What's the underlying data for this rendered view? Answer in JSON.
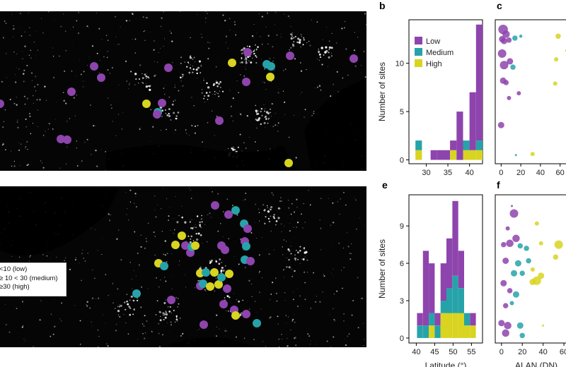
{
  "colors": {
    "low": "#8e44ad",
    "medium": "#26a3a9",
    "high": "#d8d420",
    "map_bg": "#050505",
    "lights": "#e8e8e8"
  },
  "panel_labels": {
    "b": "b",
    "c": "c",
    "e": "e",
    "f": "f"
  },
  "map_legend": {
    "low": "<10 (low)",
    "medium": "≥ 10 < 30 (medium)",
    "high": "≥30 (high)"
  },
  "map_sites": {
    "north_america": [
      {
        "lat_lon_note": "site",
        "level": "low"
      }
    ]
  },
  "chart_data": [
    {
      "id": "b",
      "type": "bar",
      "stacked": true,
      "xlabel": "",
      "ylabel": "Number of sites",
      "xlim": [
        26,
        43
      ],
      "ylim": [
        -0.4,
        14.5
      ],
      "xticks": [
        30,
        35,
        40
      ],
      "yticks": [
        0,
        5,
        10
      ],
      "bin_width": 1.5,
      "bins": [
        27.5,
        31,
        32.5,
        34,
        35.5,
        37,
        38.5,
        40,
        41.5
      ],
      "series": [
        {
          "name": "High",
          "values": [
            1,
            0,
            0,
            0,
            1,
            0,
            1,
            1,
            1
          ]
        },
        {
          "name": "Medium",
          "values": [
            1,
            0,
            0,
            0,
            0,
            0,
            1,
            0,
            1
          ]
        },
        {
          "name": "Low",
          "values": [
            0,
            1,
            1,
            1,
            1,
            5,
            0,
            6,
            12
          ]
        }
      ],
      "legend": {
        "position": "top-left",
        "entries": [
          "Low",
          "Medium",
          "High"
        ]
      }
    },
    {
      "id": "e",
      "type": "bar",
      "stacked": true,
      "xlabel": "Latitude (°)",
      "ylabel": "Number of sites",
      "xlim": [
        38,
        58
      ],
      "ylim": [
        -0.4,
        11.5
      ],
      "xticks": [
        40,
        45,
        50,
        55
      ],
      "yticks": [
        0,
        3,
        6,
        9
      ],
      "bin_width": 1.6,
      "bins": [
        40.2,
        41.8,
        43.4,
        45.0,
        46.6,
        48.2,
        49.8,
        51.4,
        53.0,
        54.6
      ],
      "series": [
        {
          "name": "High",
          "values": [
            0,
            0,
            1,
            0,
            2,
            2,
            2,
            2,
            1,
            1
          ]
        },
        {
          "name": "Medium",
          "values": [
            1,
            1,
            1,
            1,
            1,
            2,
            3,
            2,
            1,
            0
          ]
        },
        {
          "name": "Low",
          "values": [
            1,
            6,
            4,
            1,
            3,
            4,
            6,
            3,
            0,
            1
          ]
        }
      ]
    },
    {
      "id": "c",
      "type": "scatter",
      "xlabel": "",
      "xlim": [
        -6,
        66
      ],
      "xticks": [
        0,
        20,
        40,
        60
      ],
      "note": "y axis shares panel b latitude scale",
      "points": [
        {
          "x": 2,
          "y": 13.5,
          "size": 9,
          "level": "low"
        },
        {
          "x": 5,
          "y": 13.0,
          "size": 7,
          "level": "low"
        },
        {
          "x": 1,
          "y": 12.5,
          "size": 6,
          "level": "low"
        },
        {
          "x": 3,
          "y": 12.3,
          "size": 6,
          "level": "low"
        },
        {
          "x": 8,
          "y": 12.4,
          "size": 5,
          "level": "low"
        },
        {
          "x": 14,
          "y": 12.6,
          "size": 5,
          "level": "medium"
        },
        {
          "x": 20,
          "y": 12.8,
          "size": 3,
          "level": "medium"
        },
        {
          "x": 58,
          "y": 12.8,
          "size": 5,
          "level": "high"
        },
        {
          "x": 1,
          "y": 11.0,
          "size": 8,
          "level": "low"
        },
        {
          "x": 3,
          "y": 9.8,
          "size": 8,
          "level": "low"
        },
        {
          "x": 9,
          "y": 10.2,
          "size": 6,
          "level": "low"
        },
        {
          "x": 12,
          "y": 9.6,
          "size": 5,
          "level": "medium"
        },
        {
          "x": 56,
          "y": 10.4,
          "size": 4,
          "level": "high"
        },
        {
          "x": 66,
          "y": 11.3,
          "size": 2,
          "level": "high"
        },
        {
          "x": 2,
          "y": 8.2,
          "size": 6,
          "level": "low"
        },
        {
          "x": 5,
          "y": 8.0,
          "size": 5,
          "level": "low"
        },
        {
          "x": 55,
          "y": 7.9,
          "size": 4,
          "level": "high"
        },
        {
          "x": 18,
          "y": 6.9,
          "size": 4,
          "level": "low"
        },
        {
          "x": 8,
          "y": 6.4,
          "size": 4,
          "level": "low"
        },
        {
          "x": 0,
          "y": 3.6,
          "size": 6,
          "level": "low"
        },
        {
          "x": 32,
          "y": 0.6,
          "size": 4,
          "level": "high"
        },
        {
          "x": 15,
          "y": 0.5,
          "size": 2,
          "level": "medium"
        }
      ]
    },
    {
      "id": "f",
      "type": "scatter",
      "xlabel": "ALAN (DN)",
      "xlim": [
        -6,
        62
      ],
      "xticks": [
        0,
        20,
        40,
        60
      ],
      "note": "y axis shares panel e latitude scale",
      "points": [
        {
          "x": 10,
          "y": 10.6,
          "size": 2,
          "level": "low"
        },
        {
          "x": 12,
          "y": 10.0,
          "size": 8,
          "level": "low"
        },
        {
          "x": 6,
          "y": 8.8,
          "size": 4,
          "level": "low"
        },
        {
          "x": 14,
          "y": 8.0,
          "size": 7,
          "level": "low"
        },
        {
          "x": 2,
          "y": 7.5,
          "size": 5,
          "level": "low"
        },
        {
          "x": 8,
          "y": 7.6,
          "size": 7,
          "level": "low"
        },
        {
          "x": 18,
          "y": 7.4,
          "size": 5,
          "level": "medium"
        },
        {
          "x": 24,
          "y": 7.2,
          "size": 5,
          "level": "medium"
        },
        {
          "x": 34,
          "y": 9.2,
          "size": 4,
          "level": "high"
        },
        {
          "x": 38,
          "y": 7.6,
          "size": 4,
          "level": "high"
        },
        {
          "x": 55,
          "y": 7.5,
          "size": 8,
          "level": "high"
        },
        {
          "x": 52,
          "y": 6.5,
          "size": 5,
          "level": "high"
        },
        {
          "x": 4,
          "y": 6.2,
          "size": 6,
          "level": "low"
        },
        {
          "x": 16,
          "y": 6.0,
          "size": 6,
          "level": "medium"
        },
        {
          "x": 26,
          "y": 6.2,
          "size": 5,
          "level": "medium"
        },
        {
          "x": 30,
          "y": 5.5,
          "size": 4,
          "level": "high"
        },
        {
          "x": 12,
          "y": 5.2,
          "size": 6,
          "level": "medium"
        },
        {
          "x": 20,
          "y": 5.2,
          "size": 5,
          "level": "medium"
        },
        {
          "x": 38,
          "y": 5.0,
          "size": 6,
          "level": "high"
        },
        {
          "x": 34,
          "y": 4.6,
          "size": 8,
          "level": "high"
        },
        {
          "x": 30,
          "y": 4.5,
          "size": 6,
          "level": "high"
        },
        {
          "x": 2,
          "y": 4.4,
          "size": 6,
          "level": "low"
        },
        {
          "x": 8,
          "y": 3.8,
          "size": 5,
          "level": "low"
        },
        {
          "x": 14,
          "y": 3.5,
          "size": 6,
          "level": "medium"
        },
        {
          "x": 4,
          "y": 2.6,
          "size": 5,
          "level": "low"
        },
        {
          "x": 10,
          "y": 2.8,
          "size": 4,
          "level": "medium"
        },
        {
          "x": 0,
          "y": 1.2,
          "size": 6,
          "level": "low"
        },
        {
          "x": 6,
          "y": 1.0,
          "size": 7,
          "level": "low"
        },
        {
          "x": 4,
          "y": 0.4,
          "size": 7,
          "level": "low"
        },
        {
          "x": 18,
          "y": 1.0,
          "size": 6,
          "level": "medium"
        },
        {
          "x": 20,
          "y": 0.2,
          "size": 5,
          "level": "medium"
        },
        {
          "x": 40,
          "y": 1.0,
          "size": 2,
          "level": "high"
        }
      ]
    }
  ]
}
